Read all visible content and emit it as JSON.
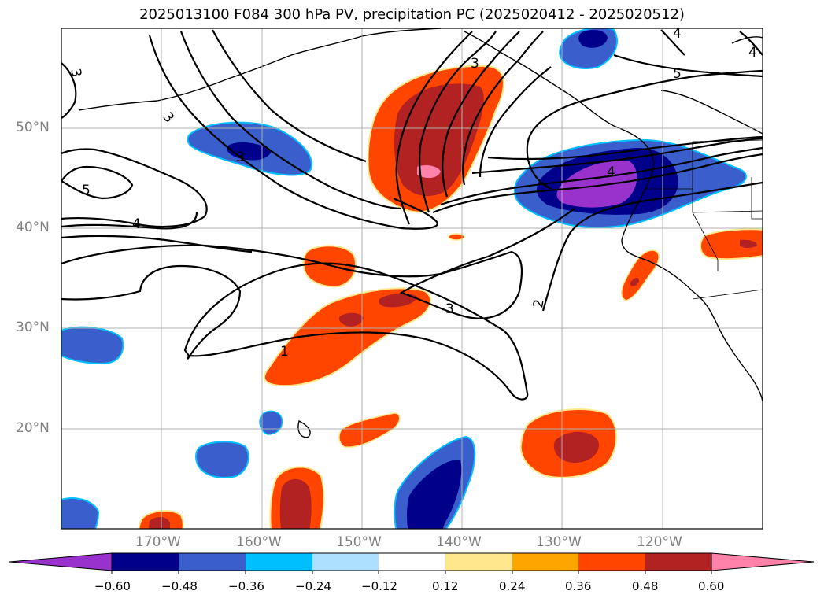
{
  "title": "2025013100 F084 300 hPa PV, precipitation PC (2025020412 - 2025020512)",
  "lat_labels": [
    {
      "text": "50°N"
    },
    {
      "text": "40°N"
    },
    {
      "text": "30°N"
    },
    {
      "text": "20°N"
    }
  ],
  "lon_labels": [
    {
      "text": "170°W"
    },
    {
      "text": "160°W"
    },
    {
      "text": "150°W"
    },
    {
      "text": "140°W"
    },
    {
      "text": "130°W"
    },
    {
      "text": "120°W"
    }
  ],
  "colorbar": {
    "ticks": [
      "−0.60",
      "−0.48",
      "−0.36",
      "−0.24",
      "−0.12",
      "0.12",
      "0.24",
      "0.36",
      "0.48",
      "0.60"
    ],
    "colors": [
      "#9932CC",
      "#00008B",
      "#3A5FCD",
      "#00BFFF",
      "#ADDFFF",
      "#FFFFFF",
      "#FFE88C",
      "#FFA500",
      "#FF4500",
      "#B22222",
      "#FF82AB"
    ]
  },
  "contour_labels": [
    "1",
    "2",
    "3",
    "3",
    "3",
    "3",
    "4",
    "4",
    "4",
    "5",
    "5",
    "4",
    "3"
  ],
  "colors": {
    "pos_mid": "#FF4500",
    "pos_high": "#B22222",
    "pos_max": "#FF82AB",
    "neg_low": "#3A5FCD",
    "neg_mid": "#00008B",
    "neg_max": "#9932CC",
    "edge_yellow": "#FFE88C",
    "edge_cyan": "#00BFFF"
  }
}
